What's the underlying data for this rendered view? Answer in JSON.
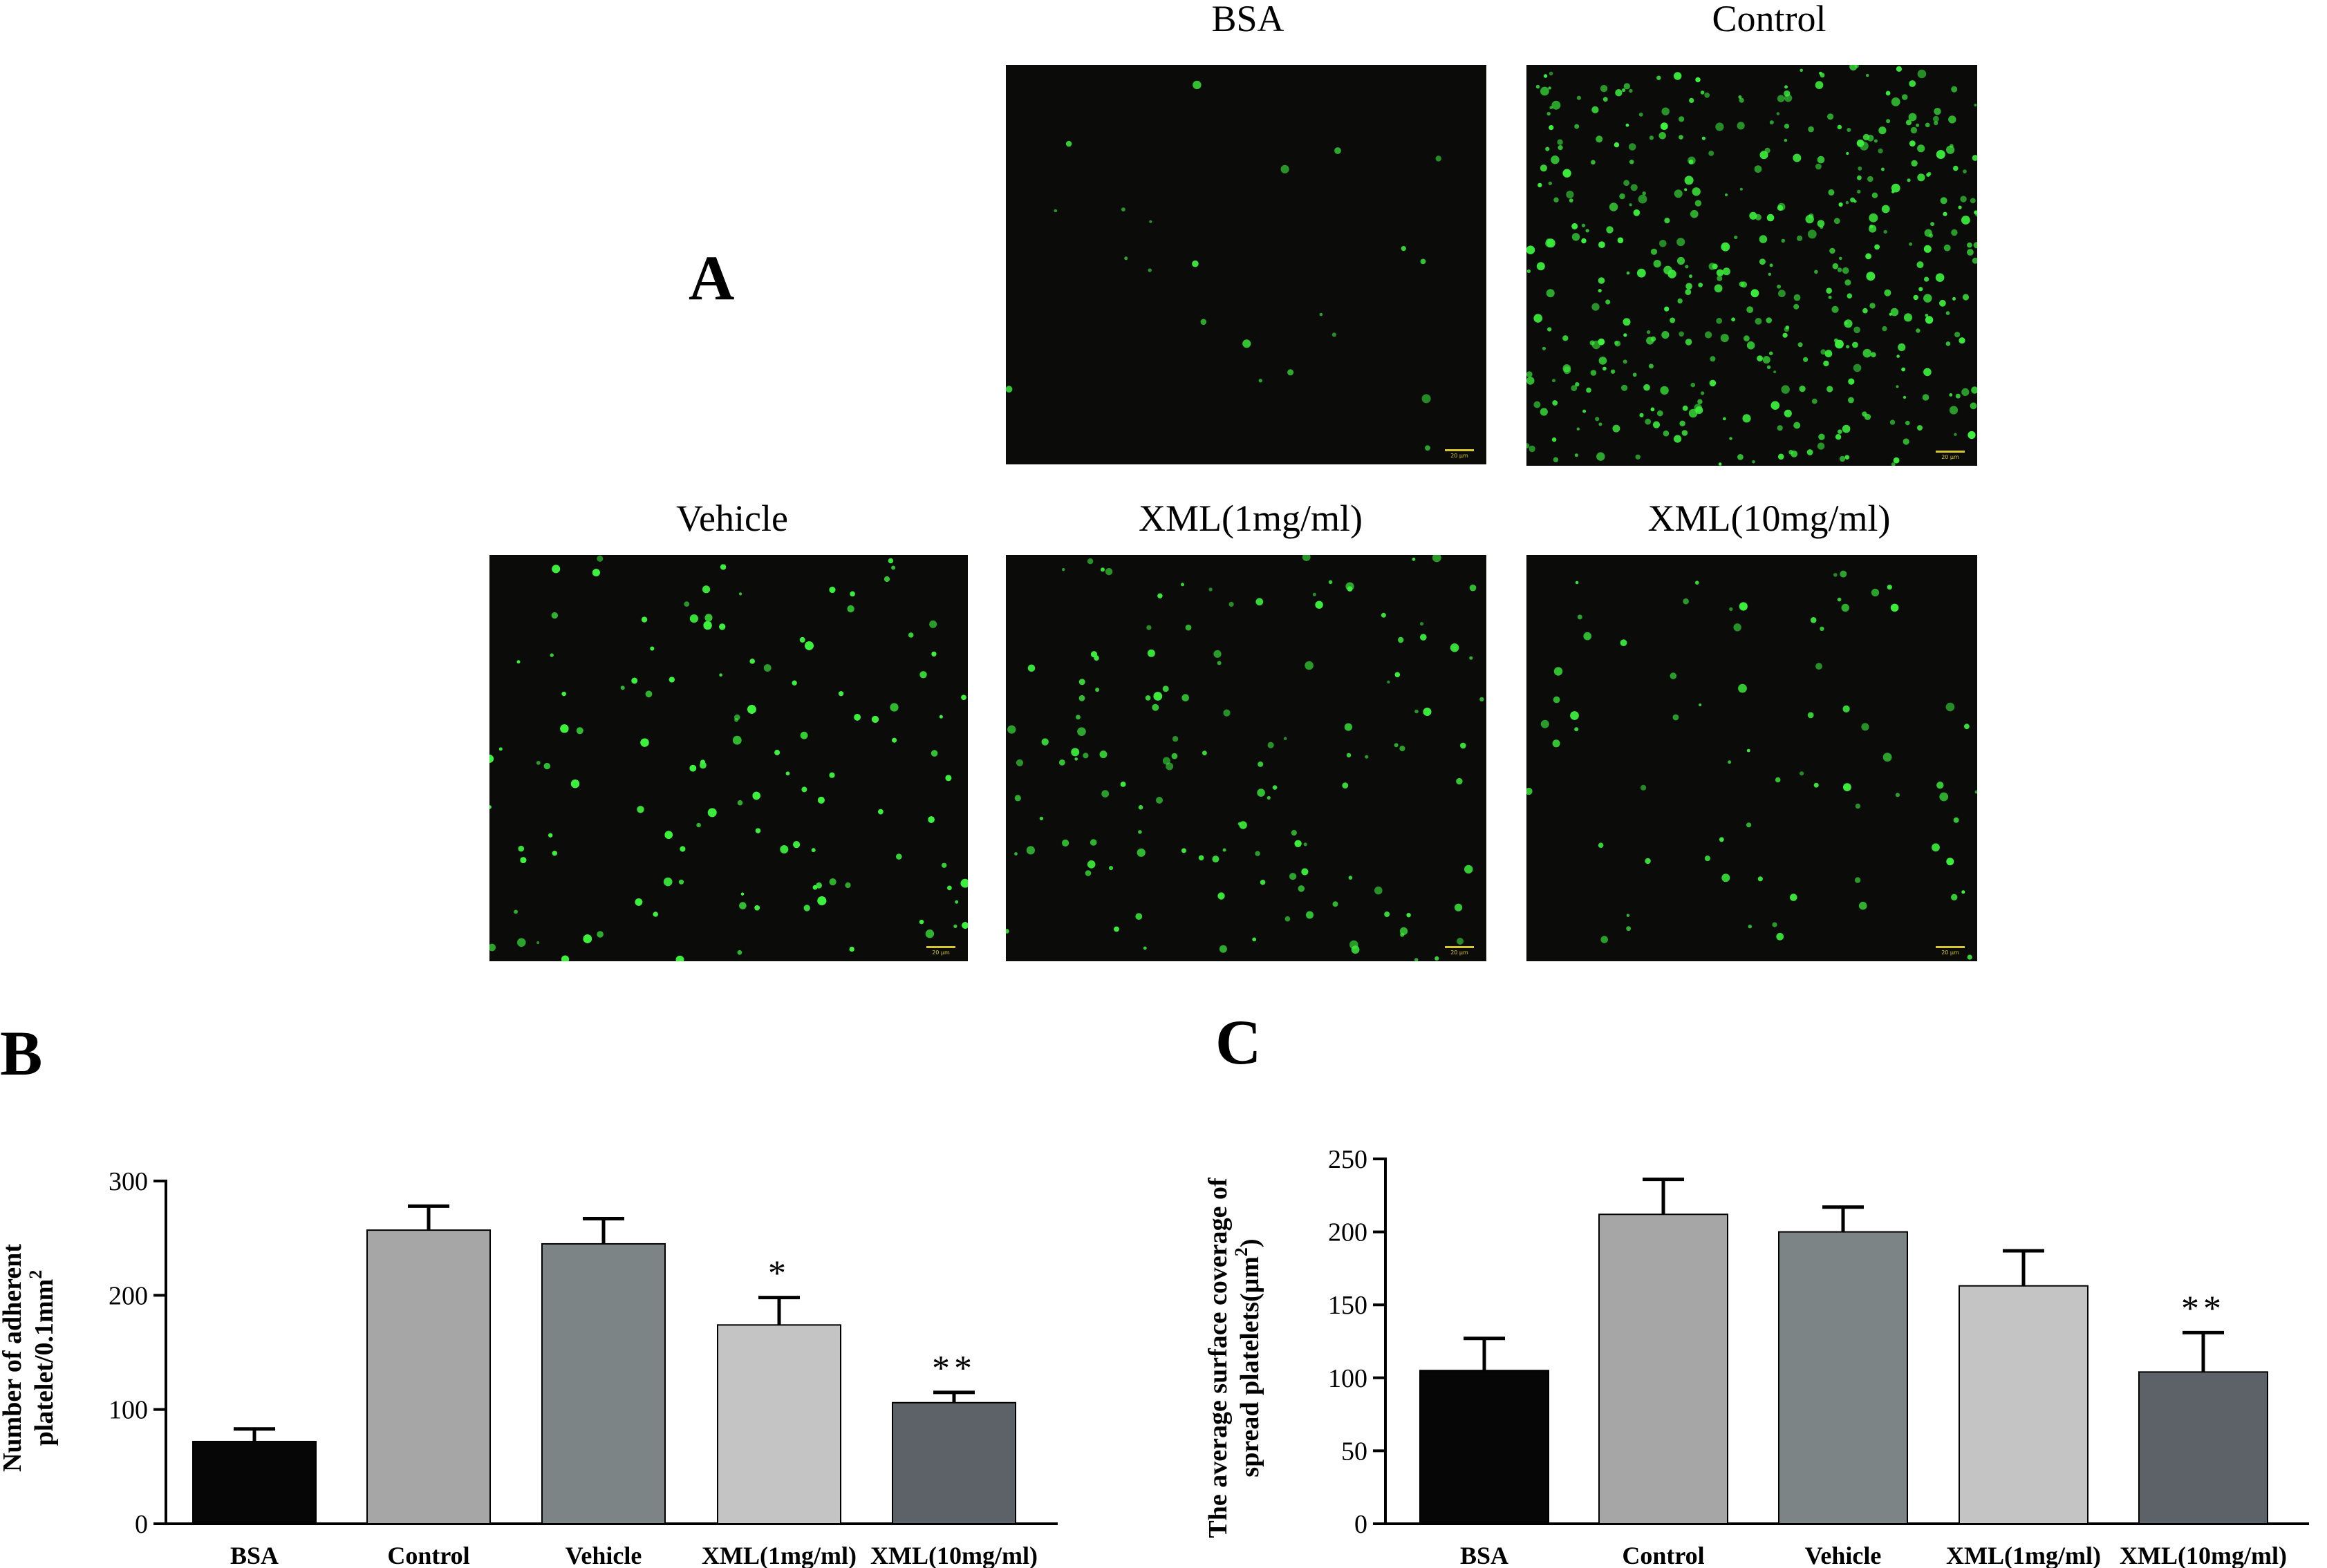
{
  "panel_a": {
    "letter": "A",
    "images": [
      {
        "title": "BSA",
        "density": 22,
        "scale_bar": "20 μm"
      },
      {
        "title": "Control",
        "density": 430,
        "scale_bar": "20 μm"
      },
      {
        "title": "Vehicle",
        "density": 400,
        "scale_bar": "20 μm"
      },
      {
        "title": "XML(1mg/ml)",
        "density": 130,
        "scale_bar": "20 μm"
      },
      {
        "title": "XML(10mg/ml)",
        "density": 70,
        "scale_bar": "20 μm"
      }
    ],
    "colors": {
      "background": "#0b0c0a",
      "platelet": "#3cf03c"
    }
  },
  "chart_data": [
    {
      "panel": "B",
      "type": "bar",
      "categories": [
        "BSA",
        "Control",
        "Vehicle",
        "XML(1mg/ml)",
        "XML(10mg/ml)"
      ],
      "values": [
        72,
        257,
        245,
        174,
        106
      ],
      "errors": [
        11,
        21,
        22,
        24,
        9
      ],
      "annotations": [
        "",
        "",
        "",
        "*",
        "**"
      ],
      "bar_colors": [
        "#060606",
        "#a6a6a6",
        "#7d8486",
        "#c4c4c4",
        "#5c6268"
      ],
      "ylabel_lines": [
        "Number of adherent",
        "platelet/0.1mm"
      ],
      "ylabel_superscript": "2",
      "ylim": [
        0,
        300
      ],
      "yticks": [
        0,
        100,
        200,
        300
      ],
      "grid": false,
      "legend": "none"
    },
    {
      "panel": "C",
      "type": "bar",
      "categories": [
        "BSA",
        "Control",
        "Vehicle",
        "XML(1mg/ml)",
        "XML(10mg/ml)"
      ],
      "values": [
        105,
        212,
        200,
        163,
        104
      ],
      "errors": [
        22,
        24,
        17,
        24,
        27
      ],
      "annotations": [
        "",
        "",
        "",
        "",
        "**"
      ],
      "bar_colors": [
        "#060606",
        "#a6a6a6",
        "#7d8486",
        "#c4c4c4",
        "#5c6268"
      ],
      "ylabel_lines": [
        "The average surface coverage of",
        "spread platelets(μm"
      ],
      "ylabel_superscript": "2",
      "ylabel_suffix": ")",
      "ylim": [
        0,
        250
      ],
      "yticks": [
        0,
        50,
        100,
        150,
        200,
        250
      ],
      "grid": false,
      "legend": "none"
    }
  ]
}
